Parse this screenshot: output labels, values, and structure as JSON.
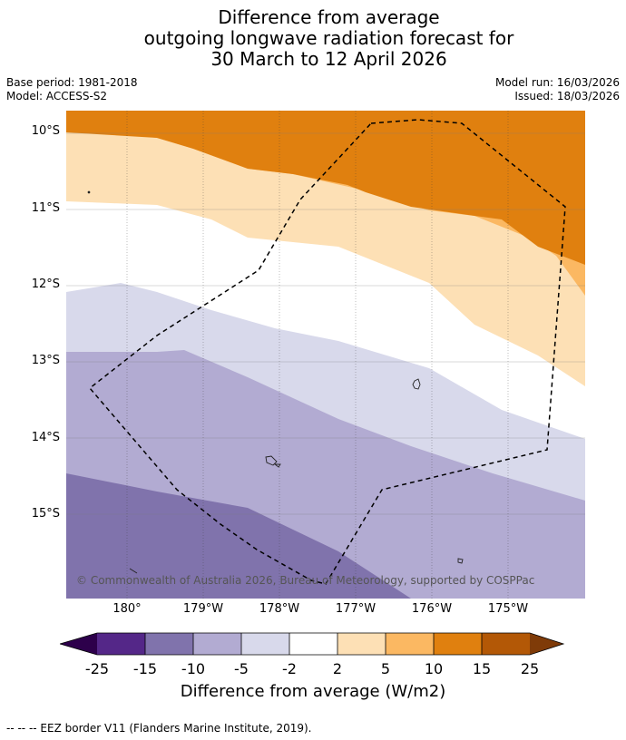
{
  "title": {
    "line1": "Difference from average",
    "line2": "outgoing longwave radiation forecast for",
    "line3": "30 March to 12 April 2026"
  },
  "meta": {
    "base_period": "Base period: 1981-2018",
    "model": "Model: ACCESS-S2",
    "model_run": "Model run: 16/03/2026",
    "issued": "Issued: 18/03/2026"
  },
  "map": {
    "lat_labels": [
      "10°S",
      "11°S",
      "12°S",
      "13°S",
      "14°S",
      "15°S"
    ],
    "lon_labels": [
      "180°",
      "179°W",
      "178°W",
      "177°W",
      "176°W",
      "175°W"
    ],
    "copyright": "© Commonwealth of Australia 2026, Bureau of Meteorology, supported by COSPPac",
    "fill_classes": {
      "pos_15_10": "#e0800f",
      "pos_10_5": "#fbb862",
      "pos_5_2": "#fde0b5",
      "neutral": "#ffffff",
      "neg_2_5": "#d8d9eb",
      "neg_5_10": "#b2abd2",
      "neg_10_15": "#8073ac"
    }
  },
  "colorbar": {
    "ticks": [
      "-25",
      "-15",
      "-10",
      "-5",
      "-2",
      "2",
      "5",
      "10",
      "15",
      "25"
    ],
    "colors": [
      "#542788",
      "#8073ac",
      "#b2abd2",
      "#d8d9eb",
      "#ffffff",
      "#fde0b5",
      "#fbb862",
      "#e0800f",
      "#b35806"
    ],
    "under_color": "#2d004b",
    "over_color": "#7f3b08",
    "label": "Difference from average (W/m2)"
  },
  "footer": {
    "legend": "--  --  -- EEZ border V11 (Flanders Marine Institute, 2019)."
  }
}
